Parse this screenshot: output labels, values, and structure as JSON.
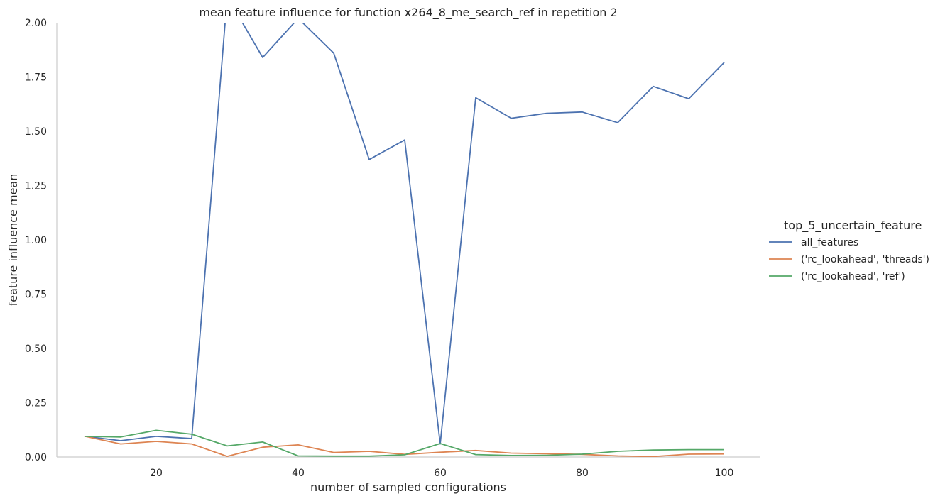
{
  "chart_data": {
    "type": "line",
    "title": "mean feature influence for function x264_8_me_search_ref in repetition 2",
    "xlabel": "number of sampled configurations",
    "ylabel": "feature influence mean",
    "xlim": [
      6,
      105
    ],
    "ylim": [
      0,
      2.0
    ],
    "xticks": [
      20,
      40,
      60,
      80,
      100
    ],
    "xtick_labels": [
      "20",
      "40",
      "60",
      "80",
      "100"
    ],
    "yticks": [
      0,
      0.25,
      0.5,
      0.75,
      1.0,
      1.25,
      1.5,
      1.75,
      2.0
    ],
    "ytick_labels": [
      "0.00",
      "0.25",
      "0.50",
      "0.75",
      "1.00",
      "1.25",
      "1.50",
      "1.75",
      "2.00"
    ],
    "grid": false,
    "legend": {
      "title": "top_5_uncertain_feature",
      "placement": "right"
    },
    "x": [
      10,
      15,
      20,
      25,
      30,
      35,
      40,
      45,
      50,
      55,
      60,
      65,
      70,
      75,
      80,
      85,
      90,
      95,
      100
    ],
    "series": [
      {
        "name": "all_features",
        "color": "#4c72b0",
        "values": [
          0.095,
          0.075,
          0.095,
          0.085,
          2.12,
          1.84,
          2.02,
          1.86,
          1.37,
          1.46,
          0.06,
          1.655,
          1.56,
          1.583,
          1.589,
          1.54,
          1.707,
          1.65,
          1.817
        ]
      },
      {
        "name": "('rc_lookahead', 'threads')",
        "color": "#dd8452",
        "values": [
          0.095,
          0.06,
          0.072,
          0.06,
          0.003,
          0.045,
          0.056,
          0.021,
          0.026,
          0.012,
          0.022,
          0.03,
          0.018,
          0.015,
          0.012,
          0.005,
          0.002,
          0.013,
          0.014
        ]
      },
      {
        "name": "('rc_lookahead', 'ref')",
        "color": "#55a868",
        "values": [
          0.095,
          0.092,
          0.123,
          0.105,
          0.051,
          0.069,
          0.005,
          0.004,
          0.004,
          0.01,
          0.062,
          0.011,
          0.007,
          0.008,
          0.013,
          0.026,
          0.032,
          0.034,
          0.034
        ]
      }
    ]
  }
}
